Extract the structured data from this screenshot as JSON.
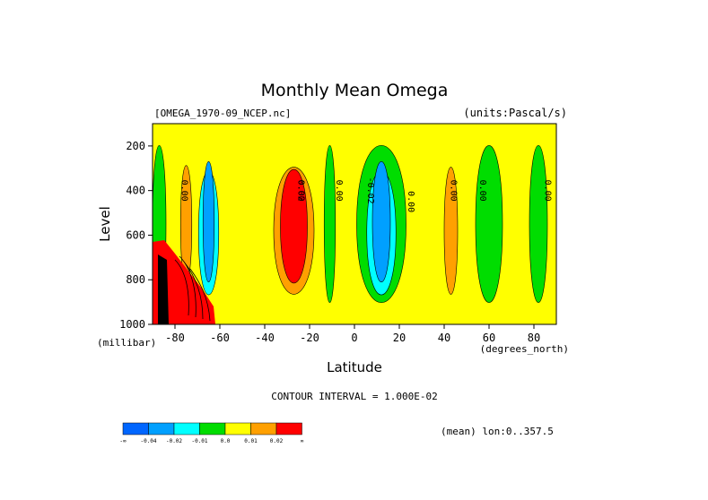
{
  "chart_data": {
    "type": "contour",
    "title": "Monthly Mean Omega",
    "dataset": "[OMEGA_1970-09_NCEP.nc]",
    "units": "(units:Pascal/s)",
    "xlabel": "Latitude",
    "xunit": "(degrees_north)",
    "ylabel": "Level",
    "yunit": "(millibar)",
    "xlim": [
      -90,
      90
    ],
    "ylim": [
      1000,
      100
    ],
    "x_ticks": [
      "-80",
      "-60",
      "-40",
      "-20",
      "0",
      "20",
      "40",
      "60",
      "80"
    ],
    "y_ticks": [
      "200",
      "400",
      "600",
      "800",
      "1000"
    ],
    "contour_interval": "CONTOUR INTERVAL = 1.000E-02",
    "mean_note": "(mean) lon:0..357.5",
    "contour_labels": [
      "0.00",
      "0.00",
      "0.02",
      "0.00",
      "-0.02",
      "0.00",
      "0.00",
      "0.00",
      "0.00",
      "0.00",
      "0.00",
      "0.00"
    ],
    "colorbar": {
      "colors": [
        "#0066ff",
        "#00a0ff",
        "#00ffff",
        "#00dd00",
        "#ffff00",
        "#ffa000",
        "#ff0000"
      ],
      "labels": [
        "-∞",
        "-0.04",
        "-0.02",
        "-0.01",
        "0.0",
        "0.01",
        "0.02",
        "∞"
      ]
    },
    "bands": [
      {
        "x": -87,
        "w": 6,
        "level": "green"
      },
      {
        "x": -75,
        "w": 5,
        "level": "orange"
      },
      {
        "x": -65,
        "w": 9,
        "level": "cyan"
      },
      {
        "x": -65,
        "w": 5,
        "level": "blue"
      },
      {
        "x": -27,
        "w": 18,
        "level": "orange"
      },
      {
        "x": -27,
        "w": 12,
        "level": "red"
      },
      {
        "x": -11,
        "w": 5,
        "level": "green"
      },
      {
        "x": 12,
        "w": 22,
        "level": "green"
      },
      {
        "x": 12,
        "w": 13,
        "level": "cyan"
      },
      {
        "x": 12,
        "w": 8,
        "level": "blue"
      },
      {
        "x": 43,
        "w": 6,
        "level": "orange"
      },
      {
        "x": 60,
        "w": 12,
        "level": "green"
      },
      {
        "x": 82,
        "w": 8,
        "level": "green"
      }
    ]
  }
}
